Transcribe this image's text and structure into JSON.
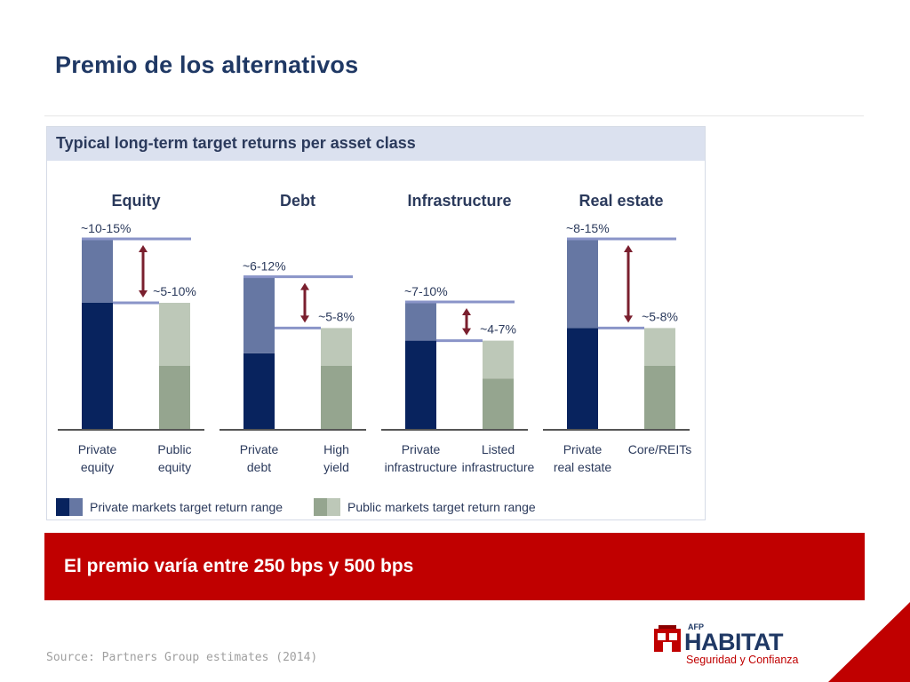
{
  "slide": {
    "title": "Premio de los alternativos",
    "banner_text": "El premio varía entre 250 bps y 500 bps",
    "source": "Source: Partners Group estimates (2014)"
  },
  "logo": {
    "afp": "AFP",
    "name": "HABITAT",
    "tagline": "Seguridad y Confianza",
    "icon": "habitat-building-icon"
  },
  "colors": {
    "title": "#1f3864",
    "banner": "#c00000",
    "private_dark": "#08235e",
    "private_light": "#6677a3",
    "public_dark": "#95a58f",
    "public_light": "#bdc8b8",
    "reference_line": "#8a94c8",
    "arrow": "#7a1f2e"
  },
  "chart_data": {
    "type": "bar",
    "title": "Typical long-term target returns per asset class",
    "unit": "%",
    "groups": [
      {
        "name": "Equity",
        "bars": [
          {
            "label": "Private\nequity",
            "series": "private",
            "low": 10,
            "high": 15,
            "range_label": "~10-15%"
          },
          {
            "label": "Public\nequity",
            "series": "public",
            "low": 5,
            "high": 10,
            "range_label": "~5-10%"
          }
        ]
      },
      {
        "name": "Debt",
        "bars": [
          {
            "label": "Private\ndebt",
            "series": "private",
            "low": 6,
            "high": 12,
            "range_label": "~6-12%"
          },
          {
            "label": "High\nyield",
            "series": "public",
            "low": 5,
            "high": 8,
            "range_label": "~5-8%"
          }
        ]
      },
      {
        "name": "Infrastructure",
        "bars": [
          {
            "label": "Private\ninfrastructure",
            "series": "private",
            "low": 7,
            "high": 10,
            "range_label": "~7-10%"
          },
          {
            "label": "Listed\ninfrastructure",
            "series": "public",
            "low": 4,
            "high": 7,
            "range_label": "~4-7%"
          }
        ]
      },
      {
        "name": "Real estate",
        "bars": [
          {
            "label": "Private\nreal estate",
            "series": "private",
            "low": 8,
            "high": 15,
            "range_label": "~8-15%"
          },
          {
            "label": "Core/REITs",
            "series": "public",
            "low": 5,
            "high": 8,
            "range_label": "~5-8%"
          }
        ]
      }
    ],
    "legend": [
      {
        "key": "private",
        "label": "Private markets target return range"
      },
      {
        "key": "public",
        "label": "Public markets target return range"
      }
    ],
    "legend_position": "bottom-left",
    "ylim": [
      0,
      15
    ],
    "grid": false
  }
}
